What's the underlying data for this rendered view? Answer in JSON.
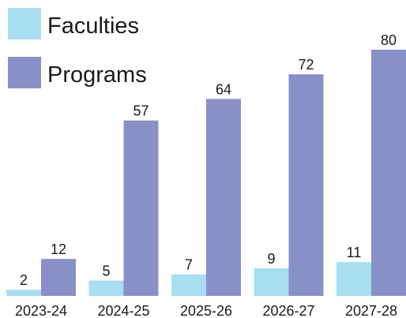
{
  "chart_data": {
    "type": "bar",
    "categories": [
      "2023-24",
      "2024-25",
      "2025-26",
      "2026-27",
      "2027-28"
    ],
    "series": [
      {
        "name": "Faculties",
        "color": "#a8def2",
        "values": [
          2,
          5,
          7,
          9,
          11
        ]
      },
      {
        "name": "Programs",
        "color": "#8890c8",
        "values": [
          12,
          57,
          64,
          72,
          80
        ]
      }
    ],
    "ylim": [
      0,
      80
    ],
    "legend": "top-left"
  }
}
